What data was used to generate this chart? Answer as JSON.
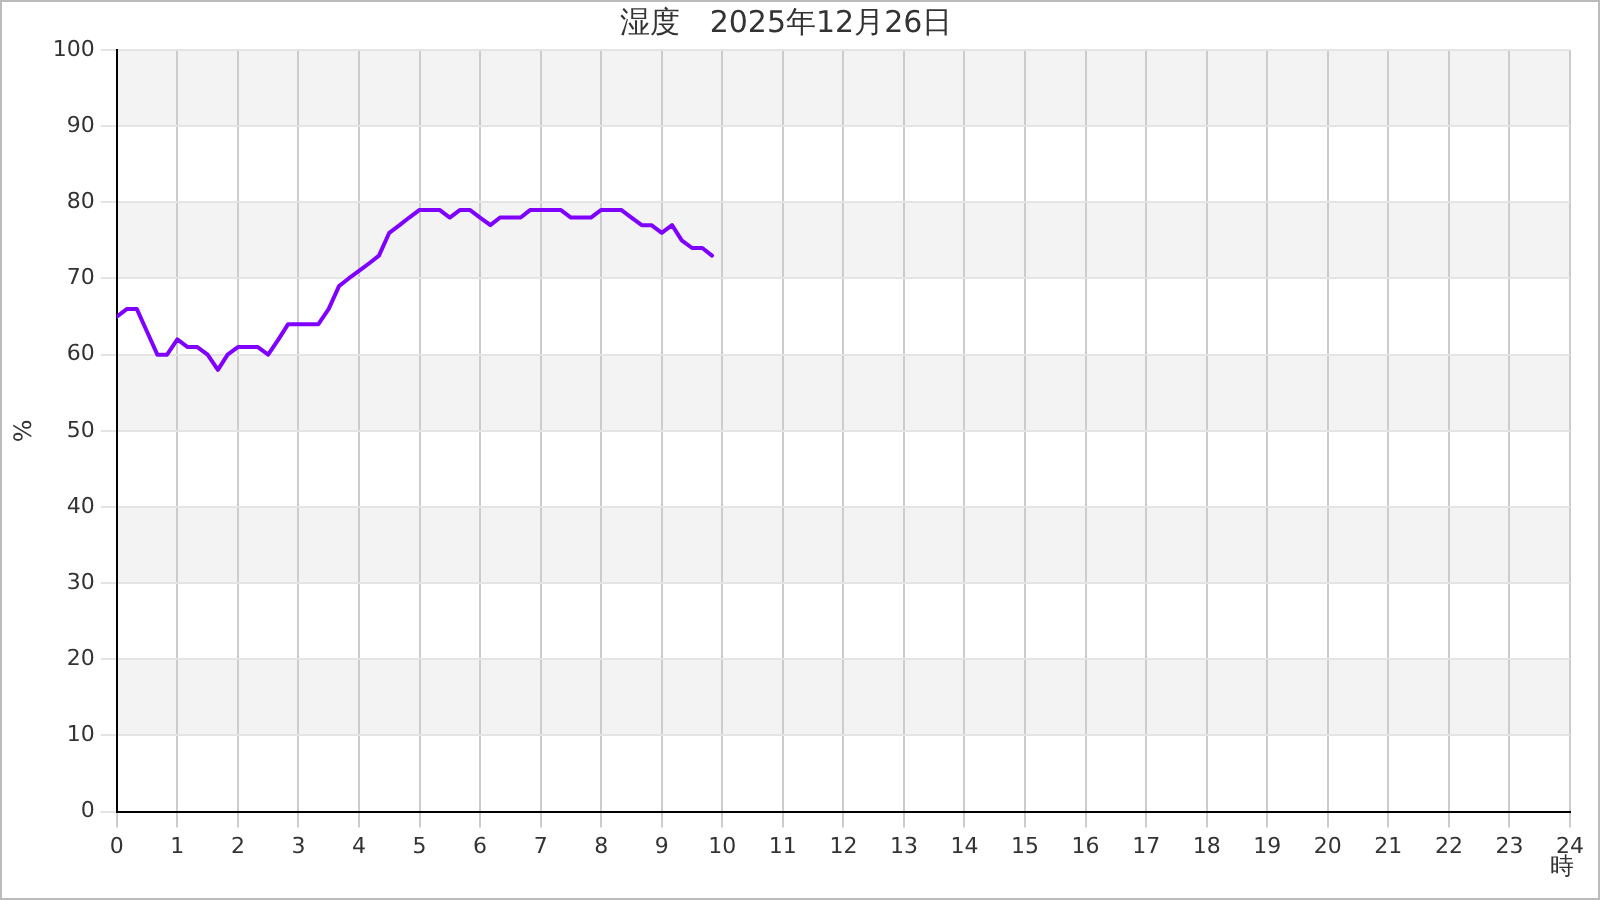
{
  "chart_data": {
    "type": "line",
    "title": "湿度　2025年12月26日",
    "xlabel": "時",
    "ylabel": "%",
    "xlim": [
      0,
      24
    ],
    "xticks": [
      0,
      1,
      2,
      3,
      4,
      5,
      6,
      7,
      8,
      9,
      10,
      11,
      12,
      13,
      14,
      15,
      16,
      17,
      18,
      19,
      20,
      21,
      22,
      23,
      24
    ],
    "ylim": [
      0,
      100
    ],
    "yticks": [
      0,
      10,
      20,
      30,
      40,
      50,
      60,
      70,
      80,
      90,
      100
    ],
    "grid": true,
    "legend": false,
    "marker": "none",
    "line_style": "solid",
    "series": [
      {
        "color": "#8000ff",
        "x": [
          0,
          0.17,
          0.33,
          0.5,
          0.67,
          0.83,
          1,
          1.17,
          1.33,
          1.5,
          1.67,
          1.83,
          2,
          2.17,
          2.33,
          2.5,
          2.67,
          2.83,
          3,
          3.17,
          3.33,
          3.5,
          3.67,
          3.83,
          4,
          4.17,
          4.33,
          4.5,
          4.67,
          4.83,
          5,
          5.17,
          5.33,
          5.5,
          5.67,
          5.83,
          6,
          6.17,
          6.33,
          6.5,
          6.67,
          6.83,
          7,
          7.17,
          7.33,
          7.5,
          7.67,
          7.83,
          8,
          8.17,
          8.33,
          8.5,
          8.67,
          8.83,
          9,
          9.17,
          9.33,
          9.5,
          9.67,
          9.83
        ],
        "values": [
          65,
          66,
          66,
          63,
          60,
          60,
          62,
          61,
          61,
          60,
          58,
          60,
          61,
          61,
          61,
          60,
          62,
          64,
          64,
          64,
          64,
          66,
          69,
          70,
          71,
          72,
          73,
          76,
          77,
          78,
          79,
          79,
          79,
          78,
          79,
          79,
          78,
          77,
          78,
          78,
          78,
          79,
          79,
          79,
          79,
          78,
          78,
          78,
          79,
          79,
          79,
          78,
          77,
          77,
          76,
          77,
          75,
          74,
          74,
          73
        ]
      }
    ]
  }
}
